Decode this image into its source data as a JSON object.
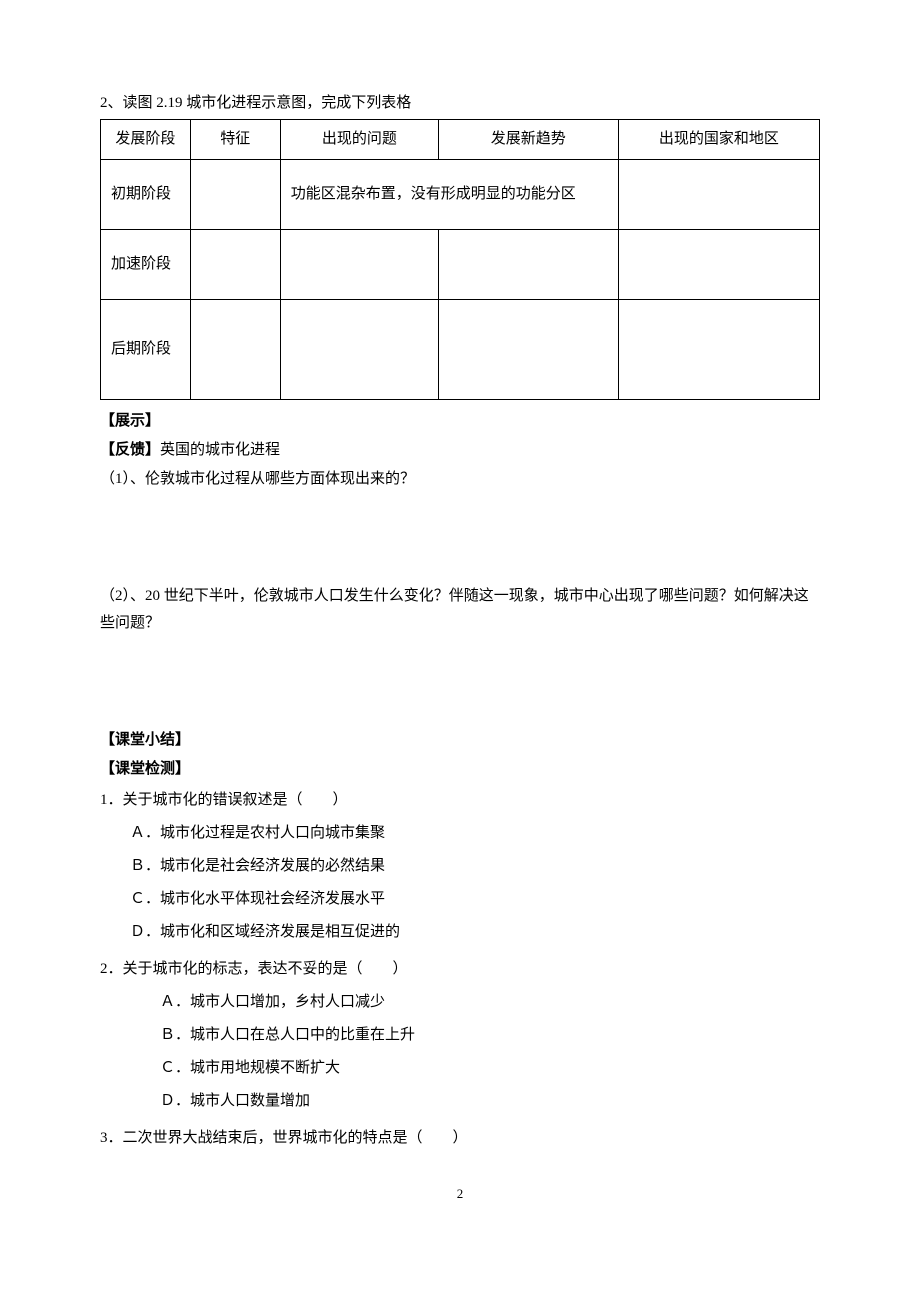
{
  "intro": "2、读图 2.19 城市化进程示意图，完成下列表格",
  "table": {
    "headers": {
      "stage": "发展阶段",
      "feature": "特征",
      "problems": "出现的问题",
      "trend": "发展新趋势",
      "countries": "出现的国家和地区"
    },
    "rows": [
      {
        "stage": "初期阶段",
        "feature": "",
        "merged_problems_trend": "功能区混杂布置，没有形成明显的功能分区",
        "countries": ""
      },
      {
        "stage": "加速阶段",
        "feature": "",
        "problems": "",
        "trend": "",
        "countries": ""
      },
      {
        "stage": "后期阶段",
        "feature": "",
        "problems": "",
        "trend": "",
        "countries": ""
      }
    ]
  },
  "sections": {
    "display": "【展示】",
    "feedback_label": "【反馈】",
    "feedback_text": "英国的城市化进程",
    "q1": "（1）、伦敦城市化过程从哪些方面体现出来的？",
    "q2": "（2）、20 世纪下半叶，伦敦城市人口发生什么变化？伴随这一现象，城市中心出现了哪些问题？如何解决这些问题？",
    "summary": "【课堂小结】",
    "test": "【课堂检测】"
  },
  "quiz": [
    {
      "stem": "1．关于城市化的错误叙述是（　　）",
      "options": [
        "Ａ．城市化过程是农村人口向城市集聚",
        "Ｂ．城市化是社会经济发展的必然结果",
        "Ｃ．城市化水平体现社会经济发展水平",
        "Ｄ．城市化和区域经济发展是相互促进的"
      ],
      "options_class": "quiz-options"
    },
    {
      "stem": "2．关于城市化的标志，表达不妥的是（　　）",
      "options": [
        "Ａ．城市人口增加，乡村人口减少",
        "Ｂ．城市人口在总人口中的比重在上升",
        "Ｃ．城市用地规模不断扩大",
        "Ｄ．城市人口数量增加"
      ],
      "options_class": "quiz-options-indented"
    },
    {
      "stem": "3．二次世界大战结束后，世界城市化的特点是（　　）",
      "options": [],
      "options_class": "quiz-options"
    }
  ],
  "page_number": "2"
}
